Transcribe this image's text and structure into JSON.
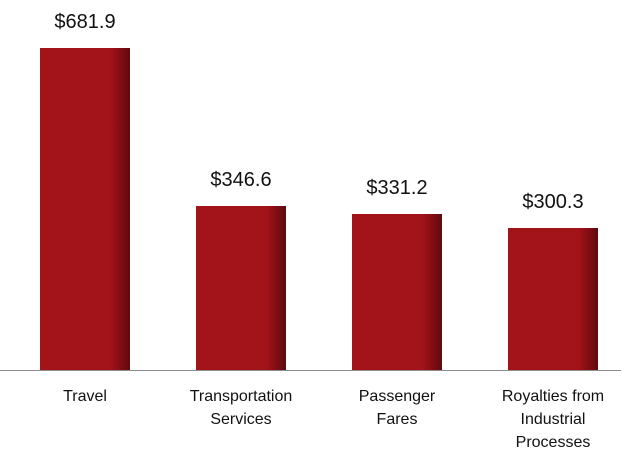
{
  "chart_data": {
    "type": "bar",
    "categories": [
      "Travel",
      "Transportation Services",
      "Passenger Fares",
      "Royalties from Industrial Processes"
    ],
    "values": [
      681.9,
      346.6,
      331.2,
      300.3
    ],
    "value_labels": [
      "$681.9",
      "$346.6",
      "$331.2",
      "$300.3"
    ],
    "color": "#a3131a"
  }
}
